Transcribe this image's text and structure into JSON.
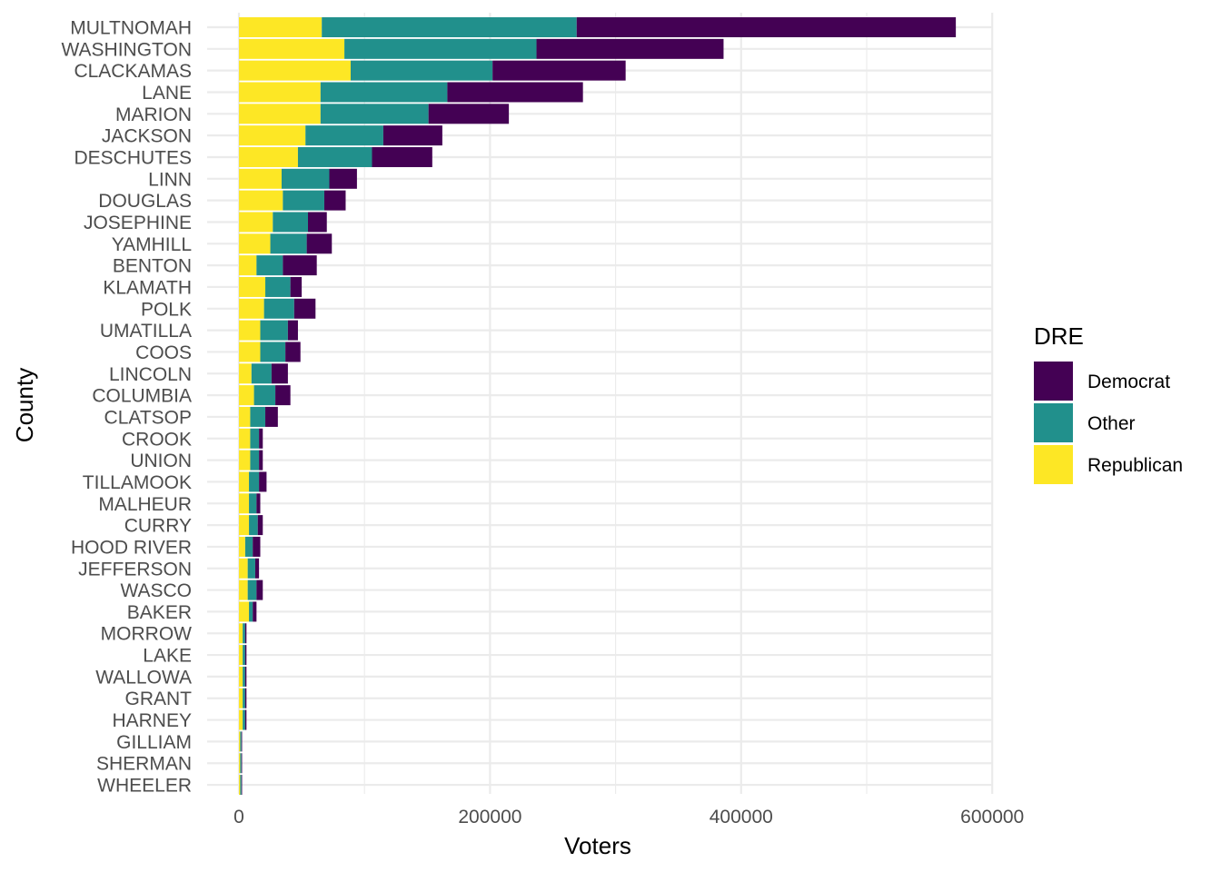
{
  "chart_data": {
    "type": "bar",
    "orientation": "horizontal",
    "stacked": true,
    "xlabel": "Voters",
    "ylabel": "County",
    "xlim": [
      -25000,
      620000
    ],
    "x_ticks": [
      0,
      200000,
      400000,
      600000
    ],
    "x_tick_labels": [
      "0",
      "200000",
      "400000",
      "600000"
    ],
    "grid": true,
    "legend_position": "right",
    "legend_title": "DRE",
    "categories": [
      "MULTNOMAH",
      "WASHINGTON",
      "CLACKAMAS",
      "LANE",
      "MARION",
      "JACKSON",
      "DESCHUTES",
      "LINN",
      "DOUGLAS",
      "JOSEPHINE",
      "YAMHILL",
      "BENTON",
      "KLAMATH",
      "POLK",
      "UMATILLA",
      "COOS",
      "LINCOLN",
      "COLUMBIA",
      "CLATSOP",
      "CROOK",
      "UNION",
      "TILLAMOOK",
      "MALHEUR",
      "CURRY",
      "HOOD RIVER",
      "JEFFERSON",
      "WASCO",
      "BAKER",
      "MORROW",
      "LAKE",
      "WALLOWA",
      "GRANT",
      "HARNEY",
      "GILLIAM",
      "SHERMAN",
      "WHEELER"
    ],
    "series": [
      {
        "name": "Republican",
        "color": "#FDE725",
        "values": [
          66000,
          84000,
          89000,
          65000,
          65000,
          53000,
          47000,
          34000,
          35000,
          27000,
          25000,
          14000,
          21000,
          20000,
          17000,
          17000,
          10000,
          12000,
          9000,
          9000,
          9000,
          8000,
          8000,
          8000,
          5000,
          7000,
          7000,
          8000,
          3000,
          3000,
          3000,
          3000,
          3000,
          1000,
          1000,
          1000
        ]
      },
      {
        "name": "Other",
        "color": "#21908C",
        "values": [
          203000,
          153000,
          113000,
          101000,
          86000,
          62000,
          59000,
          38000,
          33000,
          28000,
          29000,
          21000,
          20000,
          24000,
          22000,
          20000,
          16000,
          17000,
          12000,
          7000,
          7000,
          8000,
          6000,
          7000,
          6000,
          6000,
          7000,
          3000,
          2000,
          2000,
          2000,
          2000,
          2000,
          1000,
          1000,
          1000
        ]
      },
      {
        "name": "Democrat",
        "color": "#440154",
        "values": [
          302000,
          149000,
          106000,
          108000,
          64000,
          47000,
          48000,
          22000,
          17000,
          15000,
          20000,
          27000,
          9000,
          17000,
          8000,
          12000,
          13000,
          12000,
          10000,
          3000,
          3000,
          6000,
          3000,
          4000,
          6000,
          3000,
          5000,
          3000,
          1000,
          1000,
          1000,
          1000,
          1000,
          500,
          500,
          500
        ]
      }
    ],
    "legend_entries": [
      {
        "label": "Democrat",
        "color": "#440154"
      },
      {
        "label": "Other",
        "color": "#21908C"
      },
      {
        "label": "Republican",
        "color": "#FDE725"
      }
    ]
  }
}
